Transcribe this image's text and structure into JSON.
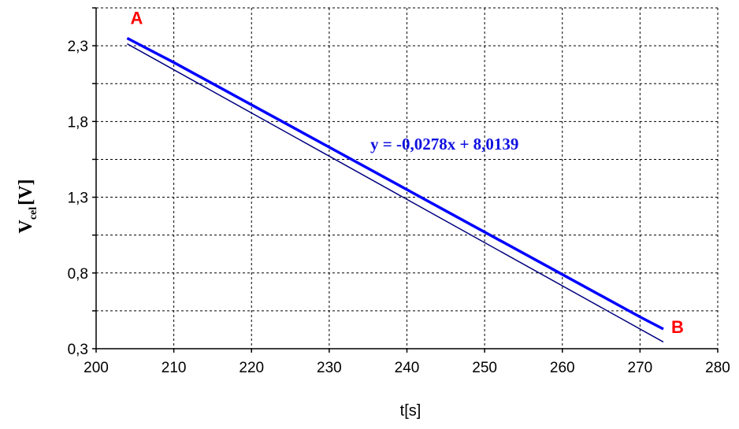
{
  "chart_data": {
    "type": "line",
    "title": "",
    "xlabel": "t[s]",
    "ylabel_main": "V",
    "ylabel_sub": "cel",
    "ylabel_unit": "[V]",
    "xlim": [
      200,
      280
    ],
    "ylim": [
      0.3,
      2.55
    ],
    "x_ticks": [
      200,
      210,
      220,
      230,
      240,
      250,
      260,
      270,
      280
    ],
    "y_ticks": [
      0.3,
      0.8,
      1.3,
      1.8,
      2.3
    ],
    "y_tick_labels": [
      "0,3",
      "0,8",
      "1,3",
      "1,8",
      "2,3"
    ],
    "grid": true,
    "series": [
      {
        "color": "#0000ff",
        "x": [
          204,
          210,
          220,
          230,
          240,
          250,
          260,
          270,
          273
        ],
        "y": [
          2.35,
          2.19,
          1.91,
          1.63,
          1.35,
          1.07,
          0.79,
          0.51,
          0.43
        ]
      }
    ],
    "trendline": {
      "color": "#000080",
      "slope": -0.0278,
      "intercept": 8.0139,
      "x_range": [
        204,
        273
      ],
      "equation": "y = -0,0278x + 8,0139"
    },
    "annotations": [
      {
        "text": "A",
        "x": 204,
        "y": 2.35
      },
      {
        "text": "B",
        "x": 273,
        "y": 0.43
      }
    ]
  }
}
